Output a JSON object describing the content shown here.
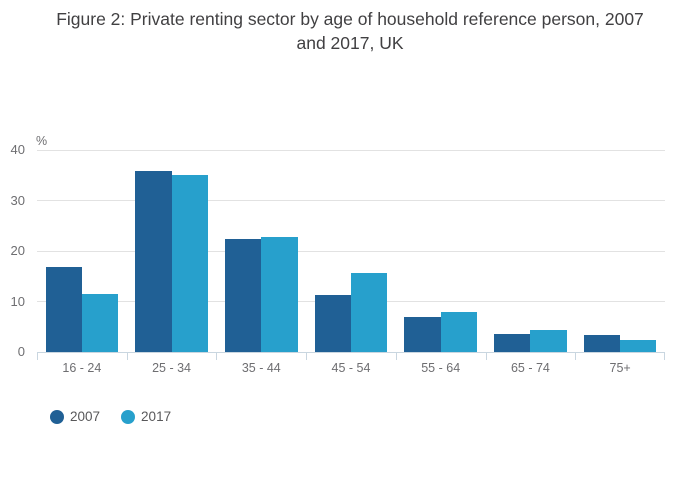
{
  "chart_data": {
    "type": "bar",
    "title": "Figure 2: Private renting sector by age of household reference person, 2007 and 2017, UK",
    "title_lines": [
      "Figure 2: Private renting sector by age of household reference person, 2007",
      "and 2017, UK"
    ],
    "unit_label": "%",
    "xlabel": "",
    "ylabel": "%",
    "categories": [
      "16 - 24",
      "25 - 34",
      "35 - 44",
      "45 - 54",
      "55 - 64",
      "65 - 74",
      "75+"
    ],
    "series": [
      {
        "name": "2007",
        "color": "#206095",
        "values": [
          16.8,
          35.8,
          22.3,
          11.2,
          6.9,
          3.5,
          3.3
        ]
      },
      {
        "name": "2017",
        "color": "#27a0cc",
        "values": [
          11.5,
          35.0,
          22.7,
          15.6,
          8.0,
          4.3,
          2.4
        ]
      }
    ],
    "ylim": [
      0,
      40
    ],
    "yticks": [
      0,
      10,
      20,
      30,
      40
    ],
    "grid": true,
    "legend_position": "bottom-left",
    "legend": [
      "2007",
      "2017"
    ]
  },
  "style": {
    "background": "#ffffff",
    "bar_color_2007": "#206095",
    "bar_color_2017": "#27a0cc",
    "gridline_color": "#e2e2e2",
    "axis_color": "#c9d6e0",
    "axis_label_color": "#6e6e71",
    "title_color": "#414042",
    "legend_text_color": "#58585a"
  }
}
